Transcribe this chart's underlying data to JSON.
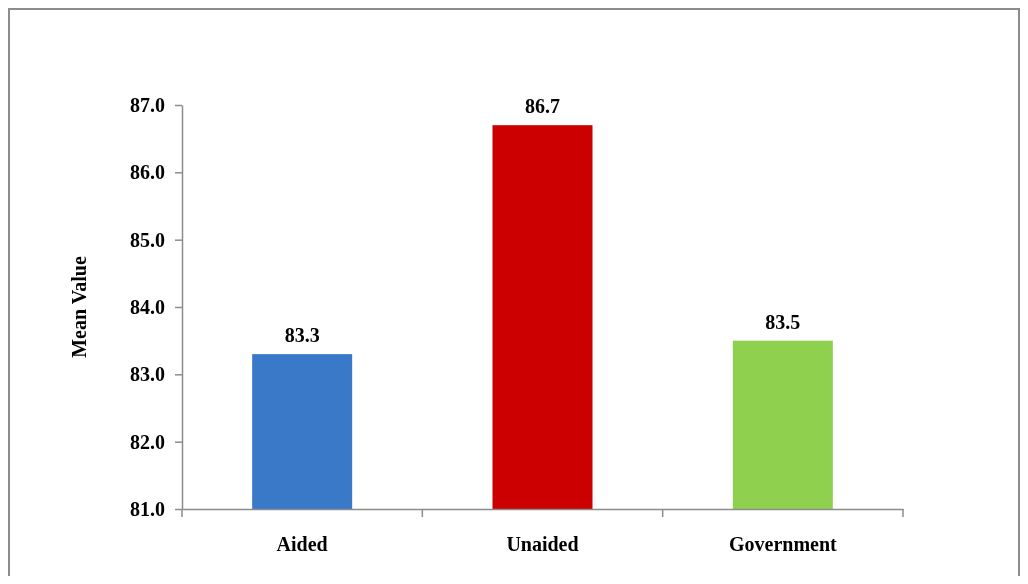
{
  "chart_data": {
    "type": "bar",
    "ylabel": "Mean Value",
    "categories": [
      "Aided",
      "Unaided",
      "Government"
    ],
    "values": [
      83.3,
      86.7,
      83.5
    ],
    "colors": [
      "#3a78c8",
      "#cc0000",
      "#8fd14f"
    ],
    "ylim": [
      81,
      87
    ],
    "yticks": [
      {
        "value": 81,
        "label": "81.0"
      },
      {
        "value": 82,
        "label": "82.0"
      },
      {
        "value": 83,
        "label": "83.0"
      },
      {
        "value": 84,
        "label": "84.0"
      },
      {
        "value": 85,
        "label": "85.0"
      },
      {
        "value": 86,
        "label": "86.0"
      },
      {
        "value": 87,
        "label": "87.0"
      }
    ],
    "data_labels": true
  }
}
